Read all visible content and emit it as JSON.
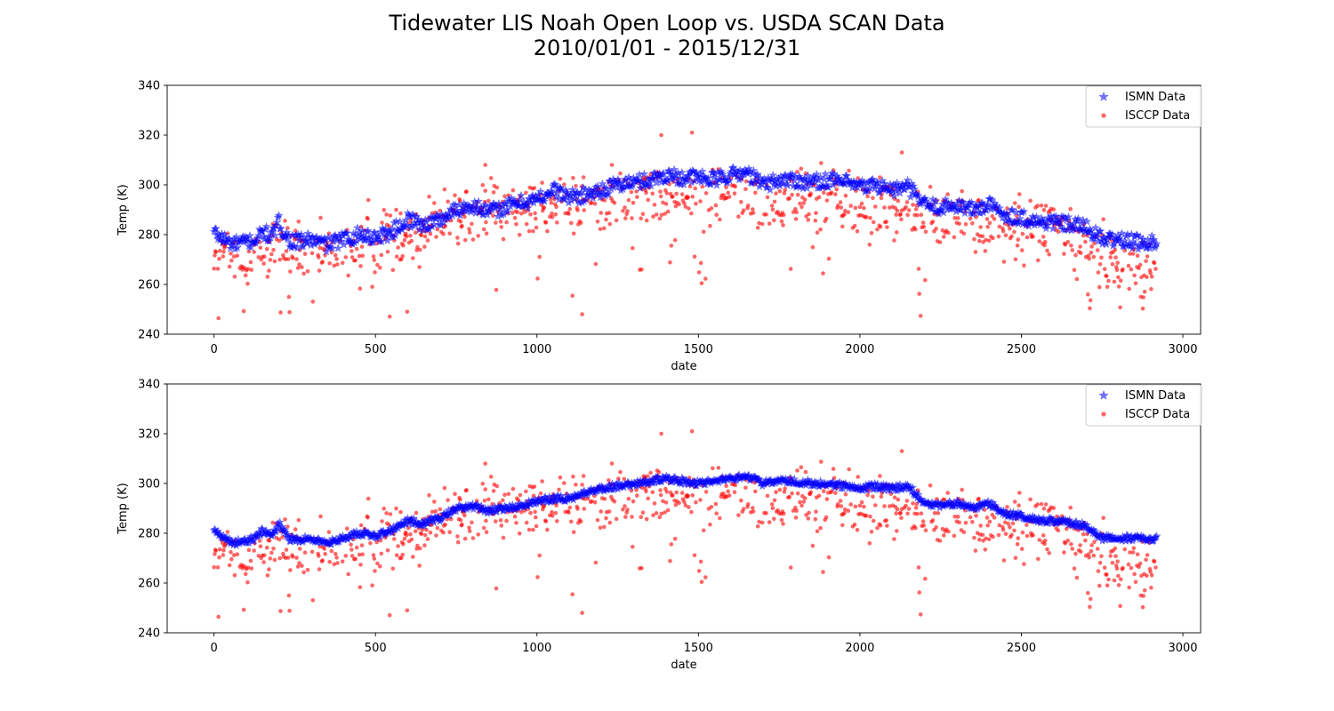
{
  "figure": {
    "title_line1": "Tidewater LIS Noah Open Loop vs. USDA SCAN Data",
    "title_line2": "2010/01/01 - 2015/12/31"
  },
  "colors": {
    "ismn": "#0000ff",
    "isccp": "#ff0000"
  },
  "chart_data": [
    {
      "type": "scatter",
      "xlabel": "date",
      "ylabel": "Temp (K)",
      "xlim": [
        -145,
        3055
      ],
      "ylim": [
        240,
        340
      ],
      "xticks": [
        0,
        500,
        1000,
        1500,
        2000,
        2500,
        3000
      ],
      "yticks": [
        240,
        260,
        280,
        300,
        320,
        340
      ],
      "legend": "top-right",
      "grid": false,
      "n_points": 2920,
      "series": [
        {
          "name": "ISMN Data",
          "marker": "star",
          "color": "#0000ff",
          "trend": [
            [
              0,
              281
            ],
            [
              20,
              279
            ],
            [
              60,
              276
            ],
            [
              100,
              277
            ],
            [
              130,
              278
            ],
            [
              150,
              281
            ],
            [
              180,
              279
            ],
            [
              200,
              285
            ],
            [
              230,
              278
            ],
            [
              260,
              277
            ],
            [
              300,
              278
            ],
            [
              350,
              276
            ],
            [
              400,
              278
            ],
            [
              450,
              280
            ],
            [
              500,
              279
            ],
            [
              550,
              281
            ],
            [
              600,
              286
            ],
            [
              650,
              284
            ],
            [
              700,
              286
            ],
            [
              750,
              290
            ],
            [
              800,
              292
            ],
            [
              850,
              289
            ],
            [
              900,
              291
            ],
            [
              950,
              293
            ],
            [
              1000,
              294
            ],
            [
              1050,
              298
            ],
            [
              1100,
              295
            ],
            [
              1150,
              296
            ],
            [
              1200,
              298
            ],
            [
              1250,
              300
            ],
            [
              1300,
              301
            ],
            [
              1350,
              302
            ],
            [
              1400,
              304
            ],
            [
              1450,
              303
            ],
            [
              1500,
              303
            ],
            [
              1550,
              302
            ],
            [
              1600,
              304
            ],
            [
              1650,
              305
            ],
            [
              1700,
              300
            ],
            [
              1750,
              302
            ],
            [
              1800,
              302
            ],
            [
              1850,
              301
            ],
            [
              1900,
              302
            ],
            [
              1950,
              301
            ],
            [
              2000,
              299
            ],
            [
              2050,
              300
            ],
            [
              2100,
              298
            ],
            [
              2150,
              299
            ],
            [
              2200,
              292
            ],
            [
              2250,
              291
            ],
            [
              2300,
              292
            ],
            [
              2350,
              290
            ],
            [
              2400,
              292
            ],
            [
              2450,
              288
            ],
            [
              2500,
              287
            ],
            [
              2550,
              285
            ],
            [
              2600,
              285
            ],
            [
              2650,
              284
            ],
            [
              2700,
              283
            ],
            [
              2750,
              278
            ],
            [
              2800,
              278
            ],
            [
              2850,
              277
            ],
            [
              2920,
              277
            ]
          ],
          "spread": 6
        },
        {
          "name": "ISCCP Data",
          "marker": "circle",
          "color": "#ff0000",
          "trend": [
            [
              0,
              270
            ],
            [
              100,
              268
            ],
            [
              200,
              275
            ],
            [
              300,
              271
            ],
            [
              400,
              274
            ],
            [
              500,
              277
            ],
            [
              600,
              280
            ],
            [
              700,
              287
            ],
            [
              800,
              288
            ],
            [
              900,
              289
            ],
            [
              1000,
              292
            ],
            [
              1100,
              290
            ],
            [
              1200,
              293
            ],
            [
              1300,
              294
            ],
            [
              1400,
              296
            ],
            [
              1500,
              297
            ],
            [
              1600,
              296
            ],
            [
              1700,
              293
            ],
            [
              1800,
              294
            ],
            [
              1900,
              293
            ],
            [
              2000,
              291
            ],
            [
              2100,
              290
            ],
            [
              2200,
              286
            ],
            [
              2300,
              287
            ],
            [
              2400,
              285
            ],
            [
              2500,
              281
            ],
            [
              2600,
              283
            ],
            [
              2700,
              275
            ],
            [
              2800,
              268
            ],
            [
              2920,
              266
            ]
          ],
          "notable_values": [
            [
              1480,
              321
            ],
            [
              1385,
              320
            ],
            [
              1140,
              248
            ],
            [
              2130,
              313
            ],
            [
              840,
              308
            ],
            [
              2870,
              255
            ]
          ]
        }
      ]
    },
    {
      "type": "scatter",
      "xlabel": "date",
      "ylabel": "Temp (K)",
      "xlim": [
        -145,
        3055
      ],
      "ylim": [
        240,
        340
      ],
      "xticks": [
        0,
        500,
        1000,
        1500,
        2000,
        2500,
        3000
      ],
      "yticks": [
        240,
        260,
        280,
        300,
        320,
        340
      ],
      "legend": "top-right",
      "grid": false,
      "n_points": 2920,
      "series": [
        {
          "name": "ISMN Data",
          "marker": "star",
          "color": "#0000ff",
          "trend": [
            [
              0,
              281
            ],
            [
              20,
              279
            ],
            [
              60,
              276
            ],
            [
              100,
              277
            ],
            [
              130,
              278
            ],
            [
              150,
              281
            ],
            [
              180,
              279
            ],
            [
              200,
              284
            ],
            [
              230,
              278
            ],
            [
              260,
              277
            ],
            [
              300,
              278
            ],
            [
              350,
              276
            ],
            [
              400,
              278
            ],
            [
              450,
              280
            ],
            [
              500,
              279
            ],
            [
              550,
              281
            ],
            [
              600,
              285
            ],
            [
              650,
              284
            ],
            [
              700,
              286
            ],
            [
              750,
              290
            ],
            [
              800,
              291
            ],
            [
              850,
              289
            ],
            [
              900,
              290
            ],
            [
              950,
              291
            ],
            [
              1000,
              293
            ],
            [
              1050,
              294
            ],
            [
              1100,
              294
            ],
            [
              1150,
              296
            ],
            [
              1200,
              298
            ],
            [
              1250,
              299
            ],
            [
              1300,
              300
            ],
            [
              1350,
              301
            ],
            [
              1400,
              302
            ],
            [
              1450,
              301
            ],
            [
              1500,
              300
            ],
            [
              1550,
              301
            ],
            [
              1600,
              302
            ],
            [
              1650,
              303
            ],
            [
              1700,
              300
            ],
            [
              1750,
              301
            ],
            [
              1800,
              301
            ],
            [
              1850,
              300
            ],
            [
              1900,
              300
            ],
            [
              1950,
              299
            ],
            [
              2000,
              298
            ],
            [
              2050,
              299
            ],
            [
              2100,
              298
            ],
            [
              2150,
              299
            ],
            [
              2200,
              292
            ],
            [
              2250,
              291
            ],
            [
              2300,
              292
            ],
            [
              2350,
              290
            ],
            [
              2400,
              292
            ],
            [
              2450,
              288
            ],
            [
              2500,
              287
            ],
            [
              2550,
              285
            ],
            [
              2600,
              285
            ],
            [
              2650,
              284
            ],
            [
              2700,
              283
            ],
            [
              2750,
              278
            ],
            [
              2800,
              278
            ],
            [
              2850,
              278
            ],
            [
              2920,
              278
            ]
          ],
          "spread": 2.5
        },
        {
          "name": "ISCCP Data",
          "marker": "circle",
          "color": "#ff0000",
          "trend": [
            [
              0,
              270
            ],
            [
              100,
              268
            ],
            [
              200,
              275
            ],
            [
              300,
              271
            ],
            [
              400,
              274
            ],
            [
              500,
              277
            ],
            [
              600,
              280
            ],
            [
              700,
              287
            ],
            [
              800,
              288
            ],
            [
              900,
              289
            ],
            [
              1000,
              292
            ],
            [
              1100,
              290
            ],
            [
              1200,
              293
            ],
            [
              1300,
              294
            ],
            [
              1400,
              296
            ],
            [
              1500,
              297
            ],
            [
              1600,
              296
            ],
            [
              1700,
              293
            ],
            [
              1800,
              294
            ],
            [
              1900,
              293
            ],
            [
              2000,
              291
            ],
            [
              2100,
              290
            ],
            [
              2200,
              286
            ],
            [
              2300,
              287
            ],
            [
              2400,
              285
            ],
            [
              2500,
              281
            ],
            [
              2600,
              283
            ],
            [
              2700,
              275
            ],
            [
              2800,
              268
            ],
            [
              2920,
              266
            ]
          ],
          "notable_values": [
            [
              1480,
              321
            ],
            [
              1385,
              320
            ],
            [
              1140,
              248
            ],
            [
              2130,
              313
            ],
            [
              840,
              308
            ],
            [
              2870,
              255
            ]
          ]
        }
      ]
    }
  ]
}
